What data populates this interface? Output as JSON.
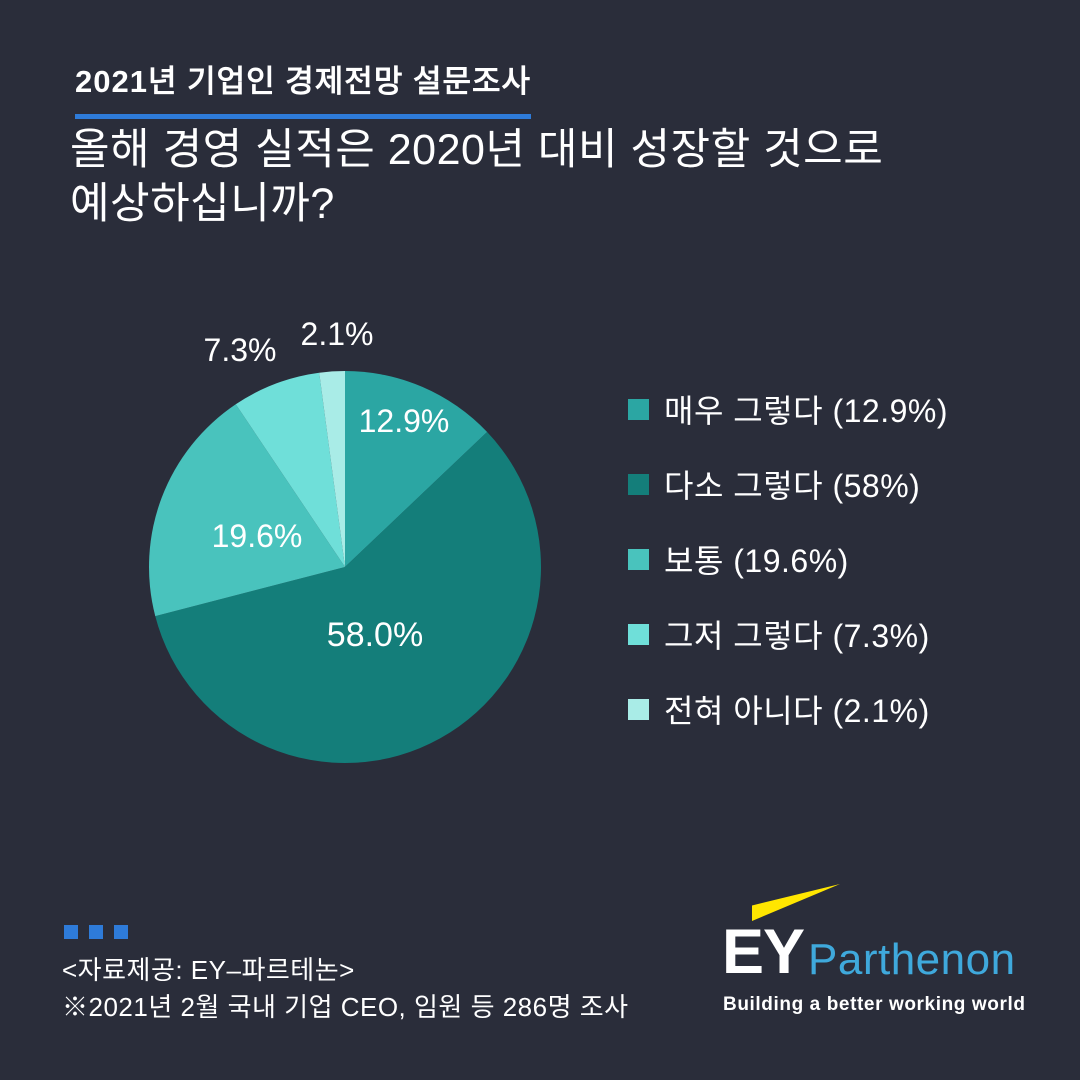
{
  "page": {
    "bg": "#2a2d3a",
    "accent_blue": "#2e7bd9"
  },
  "header": {
    "kicker": "2021년 기업인 경제전망 설문조사",
    "title_line1": "올해 경영 실적은 2020년 대비 성장할 것으로",
    "title_line2": "예상하십니까?"
  },
  "chart_data": {
    "type": "pie",
    "title": "올해 경영 실적은 2020년 대비 성장할 것으로 예상하십니까?",
    "start_angle_deg": 0,
    "direction": "clockwise",
    "total": 100,
    "slices": [
      {
        "label": "매우 그렇다",
        "value": 12.9,
        "display": "12.9%",
        "color": "#2BA6A3"
      },
      {
        "label": "다소 그렇다",
        "value": 58.0,
        "display": "58.0%",
        "color": "#147E7A"
      },
      {
        "label": "보통",
        "value": 19.6,
        "display": "19.6%",
        "color": "#49C3BD"
      },
      {
        "label": "그저 그렇다",
        "value": 7.3,
        "display": "7.3%",
        "color": "#6FDFD9"
      },
      {
        "label": "전혀 아니다",
        "value": 2.1,
        "display": "2.1%",
        "color": "#A9ECE7"
      }
    ],
    "legend_items": [
      "매우 그렇다 (12.9%)",
      "다소 그렇다 (58%)",
      "보통 (19.6%)",
      "그저 그렇다 (7.3%)",
      "전혀 아니다 (2.1%)"
    ],
    "legend_position": "right"
  },
  "footer": {
    "source": "<자료제공: EY–파르테논>",
    "note": "※2021년 2월 국내 기업 CEO, 임원 등 286명 조사"
  },
  "logo": {
    "ey": "EY",
    "parthenon": "Parthenon",
    "tagline": "Building a better working world",
    "beam_color": "#ffe600",
    "parthenon_color": "#3fa9dc"
  }
}
